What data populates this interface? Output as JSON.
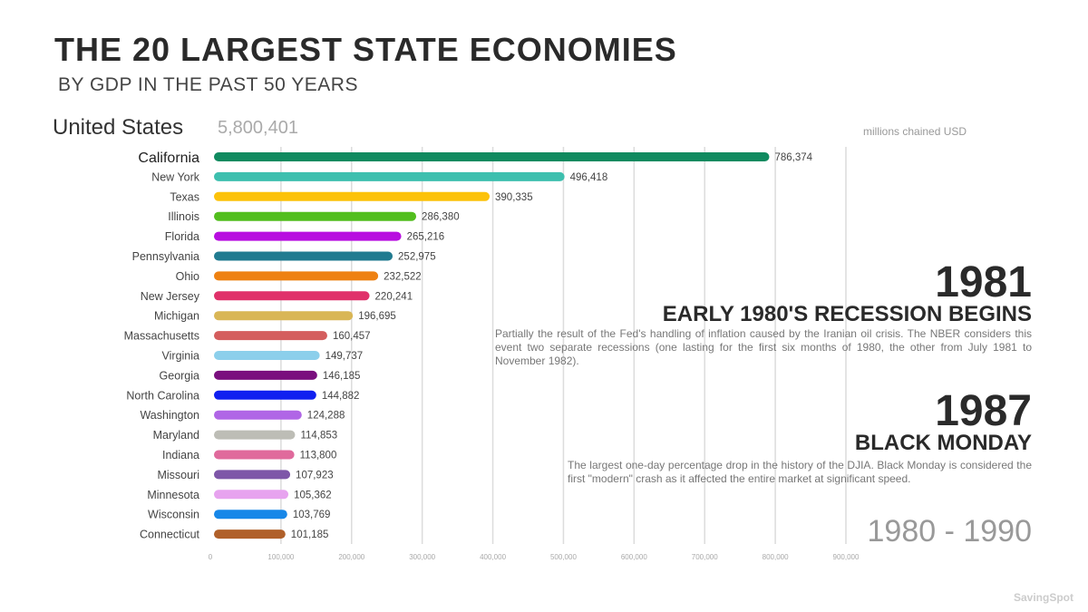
{
  "header": {
    "title": "THE 20 LARGEST STATE ECONOMIES",
    "subtitle": "BY GDP IN THE PAST 50 YEARS"
  },
  "total": {
    "label": "United States",
    "value": "5,800,401"
  },
  "units": "millions chained USD",
  "events": [
    {
      "year": "1981",
      "headline": "EARLY 1980'S RECESSION BEGINS",
      "description": "Partially the result of the Fed's handling of inflation caused by the Iranian oil crisis. The NBER considers this event two separate recessions (one lasting for the first six months of 1980, the other from July 1981 to November 1982)."
    },
    {
      "year": "1987",
      "headline": "BLACK MONDAY",
      "description": "The largest one-day percentage drop in the history of the DJIA. Black Monday is considered the first \"modern\" crash as it affected the entire market at significant speed."
    }
  ],
  "period": "1980 - 1990",
  "brand": "SavingSpot",
  "chart_data": {
    "type": "bar",
    "orientation": "horizontal",
    "title": "THE 20 LARGEST STATE ECONOMIES",
    "xlabel": "millions chained USD",
    "xlim": [
      0,
      900000
    ],
    "xticks": [
      "0",
      "100,000",
      "200,000",
      "300,000",
      "400,000",
      "500,000",
      "600,000",
      "700,000",
      "800,000",
      "900,000"
    ],
    "categories": [
      "California",
      "New York",
      "Texas",
      "Illinois",
      "Florida",
      "Pennsylvania",
      "Ohio",
      "New Jersey",
      "Michigan",
      "Massachusetts",
      "Virginia",
      "Georgia",
      "North Carolina",
      "Washington",
      "Maryland",
      "Indiana",
      "Missouri",
      "Minnesota",
      "Wisconsin",
      "Connecticut"
    ],
    "values": [
      786374,
      496418,
      390335,
      286380,
      265216,
      252975,
      232522,
      220241,
      196695,
      160457,
      149737,
      146185,
      144882,
      124288,
      114853,
      113800,
      107923,
      105362,
      103769,
      101185
    ],
    "labels": [
      "786,374",
      "496,418",
      "390,335",
      "286,380",
      "265,216",
      "252,975",
      "232,522",
      "220,241",
      "196,695",
      "160,457",
      "149,737",
      "146,185",
      "144,882",
      "124,288",
      "114,853",
      "113,800",
      "107,923",
      "105,362",
      "103,769",
      "101,185"
    ],
    "colors": [
      "#0f8a5f",
      "#3dbfae",
      "#fcc20a",
      "#52be1e",
      "#b80ee0",
      "#217b90",
      "#ee8112",
      "#e0316a",
      "#d9b656",
      "#d45d5d",
      "#8ccfeb",
      "#7a0f7e",
      "#1020f0",
      "#b066e6",
      "#bdbdb6",
      "#e06a9c",
      "#7e56a8",
      "#e7a3ef",
      "#1787e8",
      "#b0602a"
    ]
  }
}
